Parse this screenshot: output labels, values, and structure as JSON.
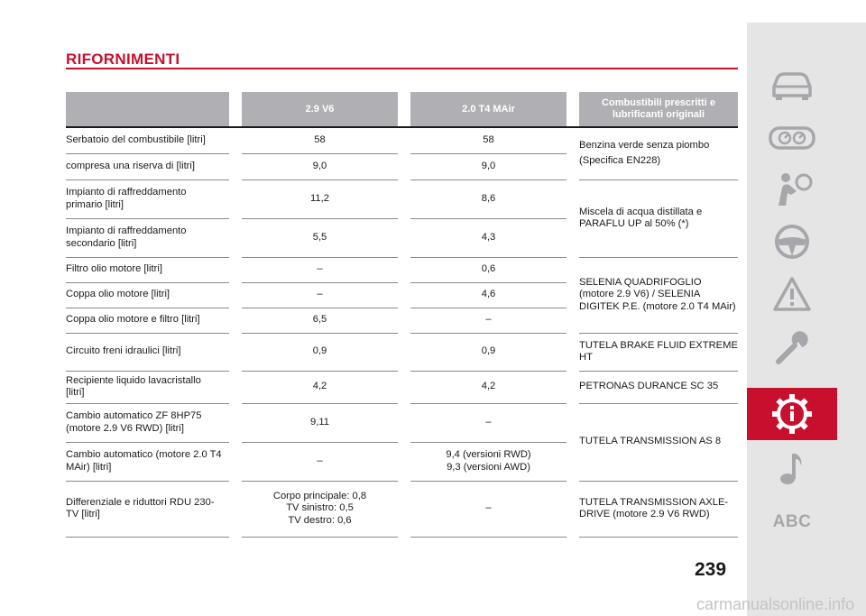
{
  "page": {
    "title": "RIFORNIMENTI",
    "page_number": "239",
    "watermark": "carmanualsonline.info"
  },
  "colors": {
    "accent": "#c8102e",
    "header_bg": "#b0b0b4",
    "sidebar_bg": "#e5e5e5",
    "icon": "#a7a7ab"
  },
  "table": {
    "headers": [
      "",
      "2.9 V6",
      "2.0 T4 MAir",
      "Combustibili prescritti e lubrificanti originali"
    ],
    "rows": [
      {
        "label": "Serbatoio del combustibile [litri]",
        "v6": "58",
        "t4": "58"
      },
      {
        "label": "compresa una riserva di [litri]",
        "v6": "9,0",
        "t4": "9,0"
      },
      {
        "label": "Impianto di raffreddamento primario [litri]",
        "v6": "11,2",
        "t4": "8,6"
      },
      {
        "label": "Impianto di raffreddamento secondario [litri]",
        "v6": "5,5",
        "t4": "4,3"
      },
      {
        "label": "Filtro olio motore [litri]",
        "v6": "–",
        "t4": "0,6"
      },
      {
        "label": "Coppa olio motore [litri]",
        "v6": "–",
        "t4": "4,6"
      },
      {
        "label": "Coppa olio motore e filtro [litri]",
        "v6": "6,5",
        "t4": "–"
      },
      {
        "label": "Circuito freni idraulici [litri]",
        "v6": "0,9",
        "t4": "0,9"
      },
      {
        "label": "Recipiente liquido lavacristallo [litri]",
        "v6": "4,2",
        "t4": "4,2"
      },
      {
        "label": "Cambio automatico ZF 8HP75 (motore 2.9 V6 RWD) [litri]",
        "v6": "9,11",
        "t4": "–"
      },
      {
        "label": "Cambio automatico (motore 2.0 T4 MAir) [litri]",
        "v6": "–",
        "t4_line1": "9,4 (versioni RWD)",
        "t4_line2": "9,3 (versioni AWD)"
      },
      {
        "label": "Differenziale e riduttori RDU 230-TV [litri]",
        "v6_line1": "Corpo principale: 0,8",
        "v6_line2": "TV sinistro: 0,5",
        "v6_line3": "TV destro: 0,6",
        "t4": "–"
      }
    ],
    "specs": {
      "fuel_line1": "Benzina verde senza piombo",
      "fuel_line2": "(Specifica EN228)",
      "coolant": "Miscela di acqua distillata e PARAFLU UP al 50% (*)",
      "engine_oil": "SELENIA QUADRIFOGLIO (motore 2.9 V6) / SELENIA DIGITEK P.E. (motore 2.0 T4 MAir)",
      "brake_fluid": "TUTELA BRAKE FLUID EXTREME HT",
      "washer": "PETRONAS DURANCE SC 35",
      "transmission": "TUTELA TRANSMISSION AS 8",
      "differential": "TUTELA TRANSMISSION AXLE-DRIVE (motore 2.9 V6 RWD)"
    }
  },
  "sidebar": {
    "icons": [
      "car-icon",
      "dashboard-gauges-icon",
      "airbag-passenger-icon",
      "steering-wheel-icon",
      "warning-triangle-icon",
      "wrench-icon",
      "gear-info-icon",
      "music-note-icon"
    ],
    "active": "gear-info-icon",
    "abc_label": "ABC"
  }
}
